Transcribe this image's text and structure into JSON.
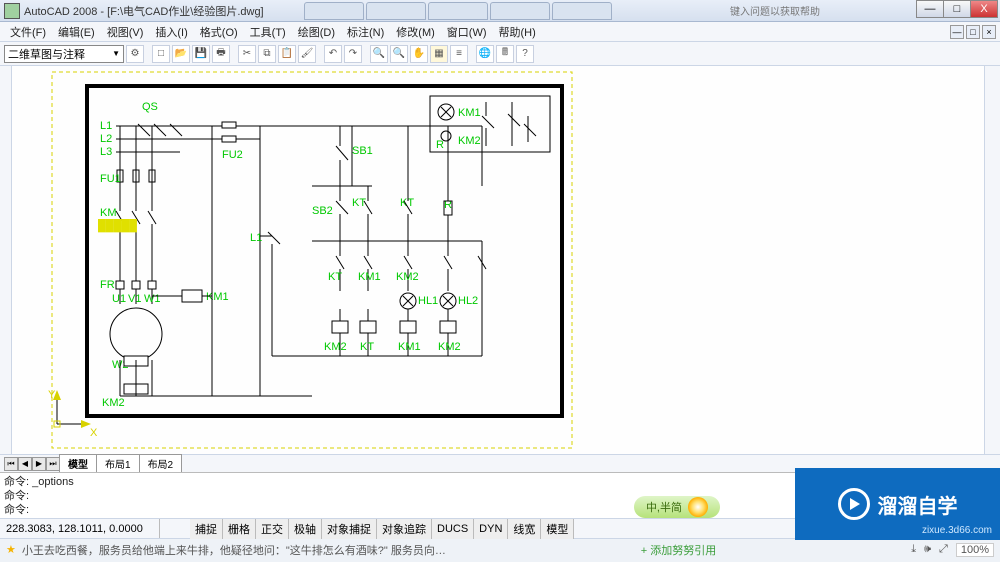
{
  "titlebar": {
    "app_title": "AutoCAD 2008 - [F:\\电气CAD作业\\经验图片.dwg]",
    "help_hint": "键入问题以获取帮助",
    "btn_min": "—",
    "btn_max": "□",
    "btn_close": "X"
  },
  "menubar": {
    "items": [
      "文件(F)",
      "编辑(E)",
      "视图(V)",
      "插入(I)",
      "格式(O)",
      "工具(T)",
      "绘图(D)",
      "标注(N)",
      "修改(M)",
      "窗口(W)",
      "帮助(H)"
    ],
    "doc_min": "—",
    "doc_max": "□",
    "doc_close": "×"
  },
  "toolbar": {
    "workspace": "二维草图与注释",
    "icons": [
      "gear",
      "new",
      "open",
      "save",
      "print",
      "cut",
      "copy",
      "paste",
      "undo",
      "redo",
      "match",
      "s",
      "zoom",
      "zoom2",
      "layer",
      "pan",
      "help",
      "globe",
      "calc",
      "?"
    ]
  },
  "layout_tabs": {
    "nav": [
      "⏮",
      "◀",
      "▶",
      "⏭"
    ],
    "tabs": [
      "模型",
      "布局1",
      "布局2"
    ],
    "active": 0
  },
  "command": {
    "l1": "命令: _options",
    "l2": "命令:",
    "l3": "命令:"
  },
  "status": {
    "coords": "228.3083, 128.1011, 0.0000",
    "opts": [
      "捕捉",
      "栅格",
      "正交",
      "极轴",
      "对象捕捉",
      "对象追踪",
      "DUCS",
      "DYN",
      "线宽",
      "模型"
    ]
  },
  "ime": {
    "label": "中,半简"
  },
  "overlay": {
    "brand": "溜溜自学",
    "url": "zixue.3d66.com"
  },
  "taskbar": {
    "left_text": "小王去吃西餐，服务员给他端上来牛排，他疑径地问：\"这牛排怎么有酒味?\" 服务员向…",
    "mid_text": "+ 添加努努引用",
    "zoom": "100%"
  },
  "schematic": {
    "border_color": "#000",
    "dash_color": "#d8d200",
    "line_color": "#000",
    "label_color": "#00c800",
    "warn_color": "#e0e000",
    "labels": {
      "QS": "QS",
      "L1": "L1",
      "L2": "L2",
      "L3": "L3",
      "FU1": "FU1",
      "FU2": "FU2",
      "KM": "KM",
      "FR": "FR",
      "U1": "U1",
      "V1": "V1",
      "W1": "W1",
      "W2": "W2",
      "KM1": "KM1",
      "KM2": "KM2",
      "SB1": "SB1",
      "SB2": "SB2",
      "KT": "KT",
      "R": "R",
      "HL1": "HL1",
      "HL2": "HL2",
      "L1c": "L1"
    }
  }
}
